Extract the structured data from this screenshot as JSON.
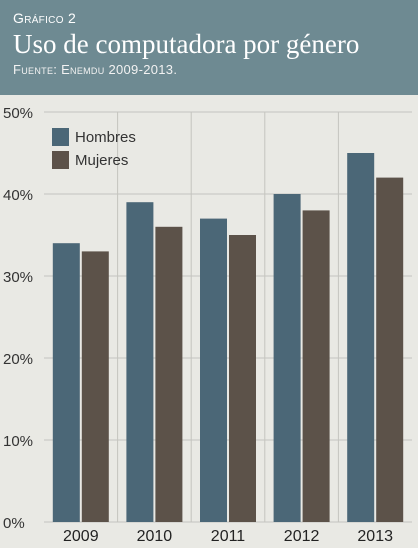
{
  "header": {
    "kicker": "Gráfico 2",
    "title": "Uso de computadora por género",
    "source": "Fuente: Enemdu 2009-2013."
  },
  "colors": {
    "header_bg": "#6e8a92",
    "plot_bg": "#e9e9e4",
    "hombres": "#4b6777",
    "mujeres": "#5c5249"
  },
  "chart_data": {
    "type": "bar",
    "categories": [
      "2009",
      "2010",
      "2011",
      "2012",
      "2013"
    ],
    "series": [
      {
        "name": "Hombres",
        "values": [
          34,
          39,
          37,
          40,
          45
        ]
      },
      {
        "name": "Mujeres",
        "values": [
          33,
          36,
          35,
          38,
          42
        ]
      }
    ],
    "yticks": [
      "0%",
      "10%",
      "20%",
      "30%",
      "40%",
      "50%"
    ],
    "ylim": [
      0,
      50
    ],
    "grid": true,
    "legend_position": "top-left"
  }
}
